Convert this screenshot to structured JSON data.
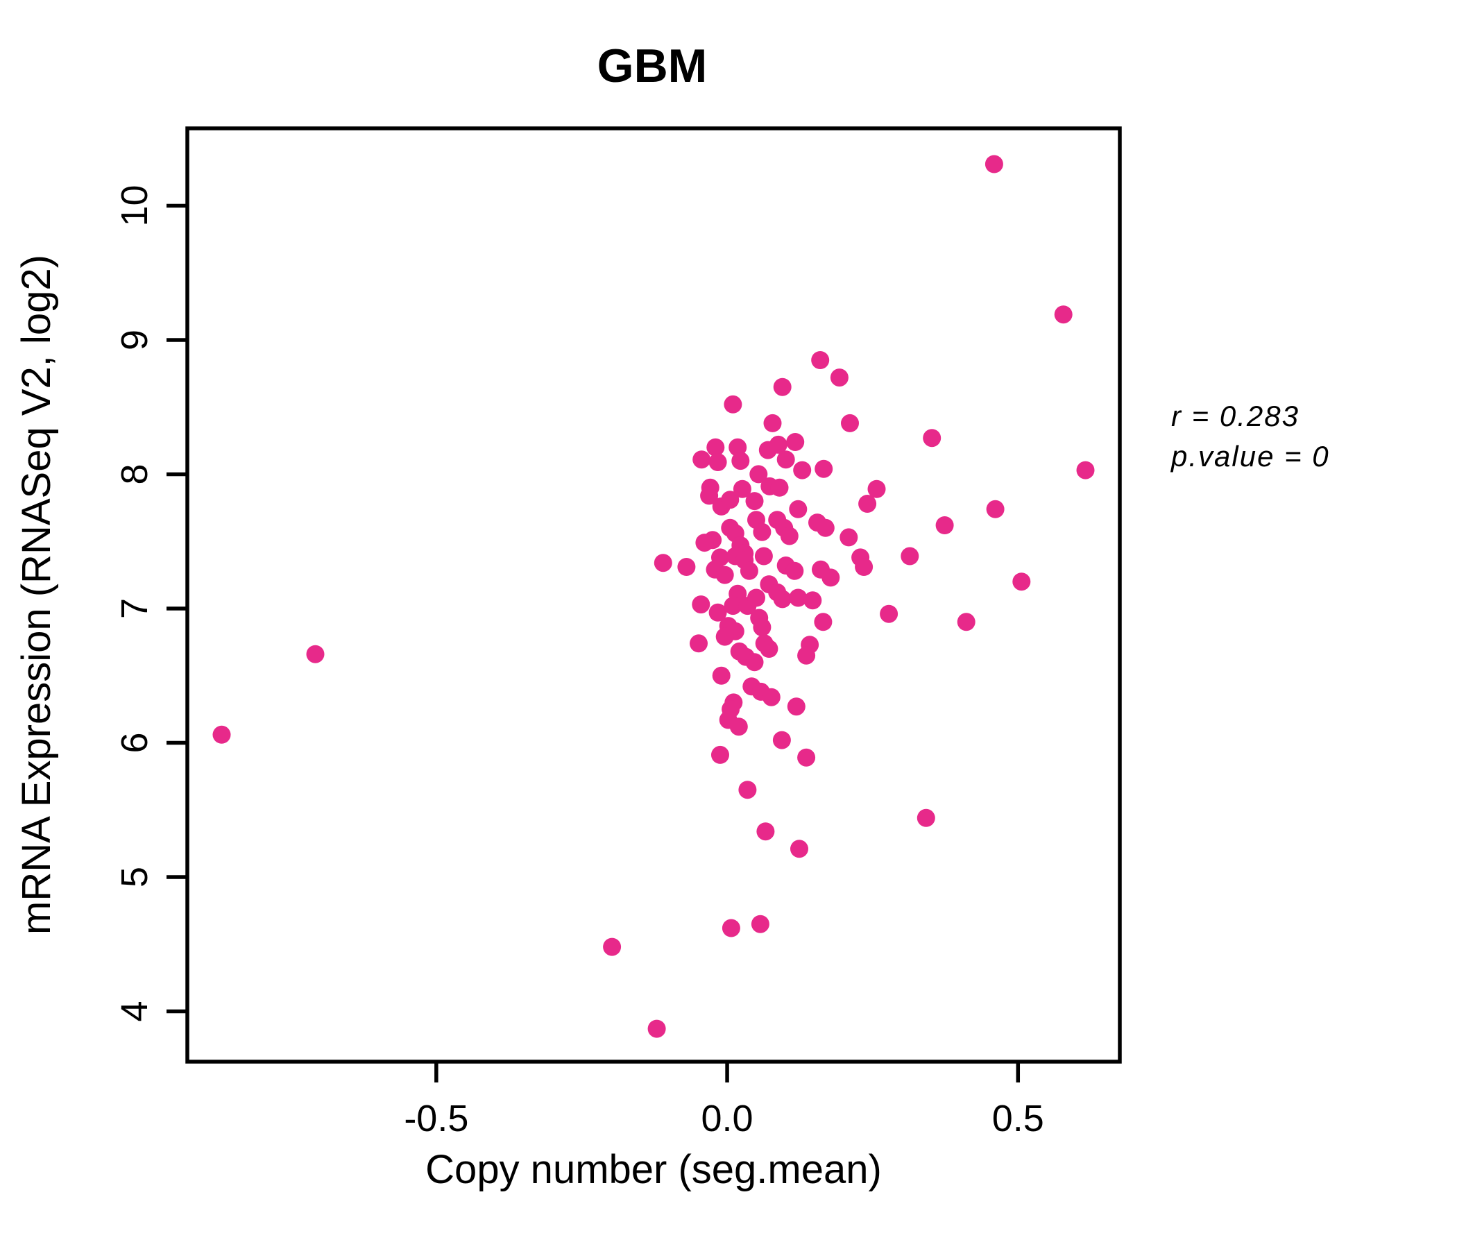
{
  "chart_data": {
    "type": "scatter",
    "title": "GBM",
    "xlabel": "Copy number (seg.mean)",
    "ylabel": "mRNA Expression (RNASeq V2, log2)",
    "annotation": {
      "line1": "r = 0.283",
      "line2": "p.value = 0"
    },
    "title_color": "#E7298A",
    "point_color": "#E7298A",
    "axis_color": "#000000",
    "grid": false,
    "legend": null,
    "xlim": [
      -0.928,
      0.675
    ],
    "ylim": [
      3.625,
      10.576
    ],
    "x_ticks": [
      -0.5,
      0.0,
      0.5
    ],
    "x_tick_labels": [
      "-0.5",
      "0.0",
      "0.5"
    ],
    "y_ticks": [
      4,
      5,
      6,
      7,
      8,
      9,
      10
    ],
    "y_tick_labels": [
      "4",
      "5",
      "6",
      "7",
      "8",
      "9",
      "10"
    ],
    "points": [
      [
        0.459,
        10.31
      ],
      [
        0.578,
        9.19
      ],
      [
        0.16,
        8.85
      ],
      [
        0.193,
        8.72
      ],
      [
        0.095,
        8.65
      ],
      [
        0.01,
        8.52
      ],
      [
        0.078,
        8.38
      ],
      [
        0.211,
        8.38
      ],
      [
        0.352,
        8.27
      ],
      [
        0.616,
        8.03
      ],
      [
        0.461,
        7.74
      ],
      [
        0.374,
        7.62
      ],
      [
        0.506,
        7.2
      ],
      [
        0.411,
        6.9
      ],
      [
        0.314,
        7.39
      ],
      [
        0.278,
        6.96
      ],
      [
        0.342,
        5.44
      ],
      [
        0.257,
        7.89
      ],
      [
        0.241,
        7.78
      ],
      [
        0.209,
        7.53
      ],
      [
        0.229,
        7.38
      ],
      [
        0.235,
        7.31
      ],
      [
        -0.869,
        6.06
      ],
      [
        -0.708,
        6.66
      ],
      [
        -0.11,
        7.34
      ],
      [
        -0.07,
        7.31
      ],
      [
        -0.02,
        8.2
      ],
      [
        -0.044,
        8.11
      ],
      [
        -0.016,
        8.09
      ],
      [
        0.018,
        8.2
      ],
      [
        0.023,
        8.1
      ],
      [
        0.07,
        8.18
      ],
      [
        0.088,
        8.22
      ],
      [
        0.117,
        8.24
      ],
      [
        0.101,
        8.11
      ],
      [
        0.129,
        8.03
      ],
      [
        0.166,
        8.04
      ],
      [
        0.054,
        8.0
      ],
      [
        0.073,
        7.91
      ],
      [
        0.09,
        7.9
      ],
      [
        -0.029,
        7.9
      ],
      [
        -0.031,
        7.84
      ],
      [
        0.026,
        7.89
      ],
      [
        -0.01,
        7.76
      ],
      [
        0.005,
        7.81
      ],
      [
        0.047,
        7.8
      ],
      [
        0.122,
        7.74
      ],
      [
        0.155,
        7.64
      ],
      [
        0.169,
        7.6
      ],
      [
        0.086,
        7.66
      ],
      [
        0.098,
        7.6
      ],
      [
        0.05,
        7.66
      ],
      [
        0.005,
        7.6
      ],
      [
        0.107,
        7.54
      ],
      [
        0.06,
        7.57
      ],
      [
        0.014,
        7.56
      ],
      [
        -0.025,
        7.51
      ],
      [
        -0.039,
        7.49
      ],
      [
        0.023,
        7.47
      ],
      [
        0.03,
        7.41
      ],
      [
        -0.012,
        7.38
      ],
      [
        -0.021,
        7.29
      ],
      [
        -0.004,
        7.25
      ],
      [
        0.014,
        7.39
      ],
      [
        0.03,
        7.36
      ],
      [
        0.038,
        7.28
      ],
      [
        0.063,
        7.39
      ],
      [
        0.101,
        7.32
      ],
      [
        0.116,
        7.28
      ],
      [
        0.072,
        7.18
      ],
      [
        0.161,
        7.29
      ],
      [
        0.178,
        7.23
      ],
      [
        -0.045,
        7.03
      ],
      [
        0.018,
        7.11
      ],
      [
        0.01,
        7.02
      ],
      [
        0.035,
        7.02
      ],
      [
        0.05,
        7.08
      ],
      [
        0.086,
        7.12
      ],
      [
        0.095,
        7.07
      ],
      [
        0.122,
        7.08
      ],
      [
        0.147,
        7.06
      ],
      [
        -0.016,
        6.97
      ],
      [
        0.002,
        6.87
      ],
      [
        0.014,
        6.83
      ],
      [
        -0.004,
        6.79
      ],
      [
        0.055,
        6.93
      ],
      [
        0.06,
        6.86
      ],
      [
        -0.049,
        6.74
      ],
      [
        0.064,
        6.74
      ],
      [
        0.072,
        6.7
      ],
      [
        0.021,
        6.68
      ],
      [
        0.032,
        6.64
      ],
      [
        0.047,
        6.6
      ],
      [
        0.142,
        6.73
      ],
      [
        0.136,
        6.65
      ],
      [
        0.165,
        6.9
      ],
      [
        -0.01,
        6.5
      ],
      [
        0.042,
        6.42
      ],
      [
        0.058,
        6.38
      ],
      [
        0.076,
        6.34
      ],
      [
        0.011,
        6.3
      ],
      [
        0.006,
        6.25
      ],
      [
        0.002,
        6.17
      ],
      [
        0.02,
        6.12
      ],
      [
        0.119,
        6.27
      ],
      [
        0.094,
        6.02
      ],
      [
        -0.012,
        5.91
      ],
      [
        0.136,
        5.89
      ],
      [
        0.035,
        5.65
      ],
      [
        0.066,
        5.34
      ],
      [
        0.124,
        5.21
      ],
      [
        0.007,
        4.62
      ],
      [
        0.057,
        4.65
      ],
      [
        -0.198,
        4.48
      ],
      [
        -0.121,
        3.87
      ]
    ]
  }
}
